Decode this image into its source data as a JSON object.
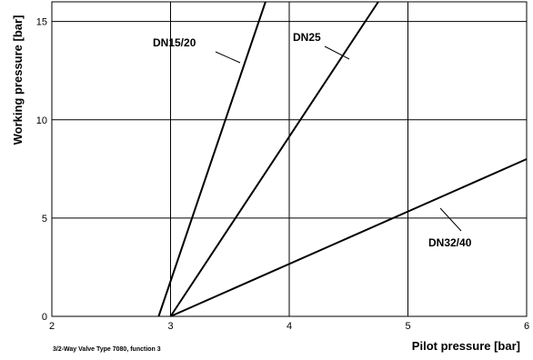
{
  "chart_data": {
    "type": "line",
    "title": "",
    "xlabel": "Pilot pressure [bar]",
    "ylabel": "Working pressure [bar]",
    "xlim": [
      2,
      6
    ],
    "ylim": [
      0,
      16
    ],
    "xticks": [
      2,
      3,
      4,
      5,
      6
    ],
    "yticks": [
      0,
      5,
      10,
      15
    ],
    "grid": true,
    "legend": "none",
    "series": [
      {
        "name": "DN15/20",
        "x": [
          2.9,
          3.8
        ],
        "y": [
          0,
          16
        ]
      },
      {
        "name": "DN25",
        "x": [
          3.0,
          4.75
        ],
        "y": [
          0,
          16
        ]
      },
      {
        "name": "DN32/40",
        "x": [
          3.0,
          6.0
        ],
        "y": [
          0,
          8
        ]
      }
    ],
    "annotations": [
      "3/2-Way Valve Type 7080,  function 3"
    ],
    "colors": {
      "line": "#000000",
      "grid": "#000000",
      "background": "#ffffff"
    }
  }
}
